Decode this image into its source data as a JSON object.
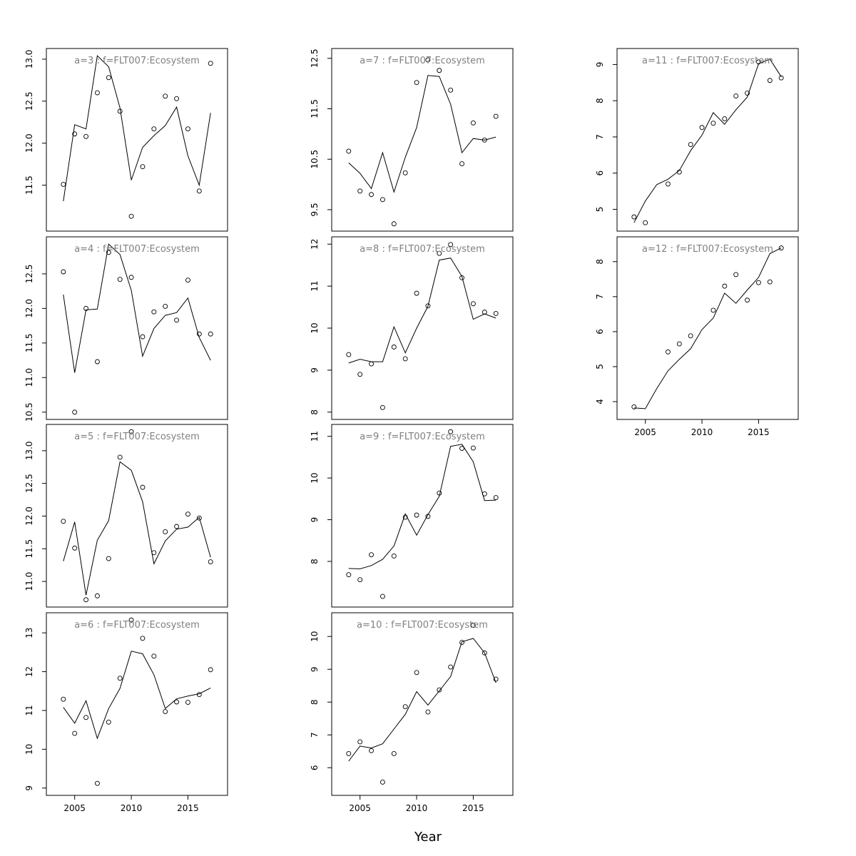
{
  "xlabel": "Year",
  "colors": {
    "label": "#7f7f7f",
    "line": "#000000",
    "points": "#000000"
  },
  "chart_data": [
    {
      "type": "scatter",
      "label": "a=3  :  f=FLT007:Ecosystem",
      "years": [
        2004,
        2005,
        2006,
        2007,
        2008,
        2009,
        2010,
        2011,
        2012,
        2013,
        2014,
        2015,
        2016,
        2017
      ],
      "observed": [
        11.51,
        12.11,
        12.08,
        12.6,
        12.78,
        12.38,
        11.13,
        11.72,
        12.17,
        12.56,
        12.53,
        12.17,
        11.43,
        12.95
      ],
      "fitted": [
        11.31,
        12.22,
        12.17,
        13.04,
        12.91,
        12.42,
        11.56,
        11.95,
        12.09,
        12.21,
        12.43,
        11.85,
        11.5,
        12.36
      ],
      "xlim": [
        2002.5,
        2018.5
      ],
      "ylim": [
        11.04,
        13.04
      ],
      "yticks": [
        11.5,
        12.0,
        12.5,
        13.0
      ],
      "xticks": [
        2005,
        2010,
        2015
      ],
      "show_xaxis": false
    },
    {
      "type": "scatter",
      "label": "a=4  :  f=FLT007:Ecosystem",
      "years": [
        2004,
        2005,
        2006,
        2007,
        2008,
        2009,
        2010,
        2011,
        2012,
        2013,
        2014,
        2015,
        2016,
        2017
      ],
      "observed": [
        12.53,
        10.5,
        12.0,
        11.23,
        12.81,
        12.42,
        12.45,
        11.59,
        11.95,
        12.03,
        11.83,
        12.41,
        11.63,
        11.63
      ],
      "fitted": [
        12.2,
        11.07,
        11.98,
        11.99,
        12.93,
        12.78,
        12.26,
        11.31,
        11.71,
        11.9,
        11.94,
        12.15,
        11.58,
        11.25
      ],
      "xlim": [
        2002.5,
        2018.5
      ],
      "ylim": [
        10.5,
        12.93
      ],
      "yticks": [
        10.5,
        11.0,
        11.5,
        12.0,
        12.5
      ],
      "xticks": [
        2005,
        2010,
        2015
      ],
      "show_xaxis": false
    },
    {
      "type": "scatter",
      "label": "a=5  :  f=FLT007:Ecosystem",
      "years": [
        2004,
        2005,
        2006,
        2007,
        2008,
        2009,
        2010,
        2011,
        2012,
        2013,
        2014,
        2015,
        2016,
        2017
      ],
      "observed": [
        11.92,
        11.51,
        10.72,
        10.78,
        11.35,
        12.9,
        13.29,
        12.44,
        11.44,
        11.76,
        11.84,
        12.03,
        11.97,
        11.3
      ],
      "fitted": [
        11.31,
        11.91,
        10.79,
        11.63,
        11.93,
        12.83,
        12.7,
        12.22,
        11.27,
        11.62,
        11.8,
        11.83,
        11.98,
        11.37
      ],
      "xlim": [
        2002.5,
        2018.5
      ],
      "ylim": [
        10.72,
        13.29
      ],
      "yticks": [
        11.0,
        11.5,
        12.0,
        12.5,
        13.0
      ],
      "xticks": [
        2005,
        2010,
        2015
      ],
      "show_xaxis": false
    },
    {
      "type": "scatter",
      "label": "a=6  :  f=FLT007:Ecosystem",
      "years": [
        2004,
        2005,
        2006,
        2007,
        2008,
        2009,
        2010,
        2011,
        2012,
        2013,
        2014,
        2015,
        2016,
        2017
      ],
      "observed": [
        11.29,
        10.41,
        10.82,
        9.12,
        10.7,
        11.83,
        13.33,
        12.86,
        12.4,
        10.97,
        11.22,
        11.21,
        11.41,
        12.05
      ],
      "fitted": [
        11.08,
        10.67,
        11.25,
        10.28,
        11.05,
        11.57,
        12.53,
        12.46,
        11.92,
        11.05,
        11.3,
        11.37,
        11.43,
        11.58
      ],
      "xlim": [
        2002.5,
        2018.5
      ],
      "ylim": [
        9.0,
        13.33
      ],
      "yticks": [
        9,
        10,
        11,
        12,
        13
      ],
      "xticks": [
        2005,
        2010,
        2015
      ],
      "show_xaxis": true
    },
    {
      "type": "scatter",
      "label": "a=7  :  f=FLT007:Ecosystem",
      "years": [
        2004,
        2005,
        2006,
        2007,
        2008,
        2009,
        2010,
        2011,
        2012,
        2013,
        2014,
        2015,
        2016,
        2017
      ],
      "observed": [
        10.66,
        9.87,
        9.8,
        9.7,
        9.22,
        10.23,
        12.02,
        12.47,
        12.26,
        11.87,
        10.41,
        11.22,
        10.88,
        11.35
      ],
      "fitted": [
        10.43,
        10.22,
        9.92,
        10.63,
        9.85,
        10.54,
        11.13,
        12.16,
        12.14,
        11.59,
        10.63,
        10.91,
        10.88,
        10.94
      ],
      "xlim": [
        2002.5,
        2018.5
      ],
      "ylim": [
        9.22,
        12.55
      ],
      "yticks": [
        9.5,
        10.5,
        11.5,
        12.5
      ],
      "xticks": [
        2005,
        2010,
        2015
      ],
      "show_xaxis": false
    },
    {
      "type": "scatter",
      "label": "a=8  :  f=FLT007:Ecosystem",
      "years": [
        2004,
        2005,
        2006,
        2007,
        2008,
        2009,
        2010,
        2011,
        2012,
        2013,
        2014,
        2015,
        2016,
        2017
      ],
      "observed": [
        9.37,
        8.9,
        9.15,
        8.11,
        9.55,
        9.27,
        10.83,
        10.53,
        11.78,
        11.99,
        11.2,
        10.58,
        10.38,
        10.35
      ],
      "fitted": [
        9.17,
        9.26,
        9.2,
        9.2,
        10.03,
        9.41,
        10.0,
        10.52,
        11.62,
        11.67,
        11.23,
        10.21,
        10.34,
        10.24
      ],
      "xlim": [
        2002.5,
        2018.5
      ],
      "ylim": [
        8.0,
        12.0
      ],
      "yticks": [
        8,
        9,
        10,
        11,
        12
      ],
      "xticks": [
        2005,
        2010,
        2015
      ],
      "show_xaxis": false
    },
    {
      "type": "scatter",
      "label": "a=9  :  f=FLT007:Ecosystem",
      "years": [
        2004,
        2005,
        2006,
        2007,
        2008,
        2009,
        2010,
        2011,
        2012,
        2013,
        2014,
        2015,
        2016,
        2017
      ],
      "observed": [
        7.68,
        7.56,
        8.16,
        7.16,
        8.13,
        9.06,
        9.11,
        9.08,
        9.64,
        11.11,
        10.71,
        10.72,
        9.62,
        9.53
      ],
      "fitted": [
        7.83,
        7.82,
        7.9,
        8.05,
        8.37,
        9.14,
        8.63,
        9.12,
        9.56,
        10.76,
        10.81,
        10.39,
        9.46,
        9.47
      ],
      "xlim": [
        2002.5,
        2018.5
      ],
      "ylim": [
        7.08,
        11.11
      ],
      "yticks": [
        8,
        9,
        10,
        11
      ],
      "xticks": [
        2005,
        2010,
        2015
      ],
      "show_xaxis": false
    },
    {
      "type": "scatter",
      "label": "a=10  :  f=FLT007:Ecosystem",
      "years": [
        2004,
        2005,
        2006,
        2007,
        2008,
        2009,
        2010,
        2011,
        2012,
        2013,
        2014,
        2015,
        2016,
        2017
      ],
      "observed": [
        6.43,
        6.79,
        6.52,
        5.56,
        6.43,
        7.86,
        8.9,
        7.7,
        8.37,
        9.07,
        9.82,
        10.34,
        9.5,
        8.7
      ],
      "fitted": [
        6.2,
        6.66,
        6.6,
        6.73,
        7.18,
        7.63,
        8.32,
        7.91,
        8.34,
        8.78,
        9.84,
        9.94,
        9.5,
        8.59
      ],
      "xlim": [
        2002.5,
        2018.5
      ],
      "ylim": [
        5.38,
        10.5
      ],
      "yticks": [
        6,
        7,
        8,
        9,
        10
      ],
      "xticks": [
        2005,
        2010,
        2015
      ],
      "show_xaxis": true
    },
    {
      "type": "scatter",
      "label": "a=11  :  f=FLT007:Ecosystem",
      "years": [
        2004,
        2005,
        2006,
        2007,
        2008,
        2009,
        2010,
        2011,
        2012,
        2013,
        2014,
        2015,
        2016,
        2017
      ],
      "observed": [
        4.79,
        4.63,
        null,
        5.7,
        6.03,
        6.79,
        7.26,
        7.38,
        7.5,
        8.13,
        8.21,
        9.07,
        8.56,
        8.63
      ],
      "fitted": [
        4.63,
        5.23,
        5.68,
        5.83,
        6.07,
        6.62,
        7.05,
        7.67,
        7.35,
        7.75,
        8.1,
        9.02,
        9.15,
        8.66
      ],
      "xlim": [
        2002.5,
        2018.5
      ],
      "ylim": [
        4.6,
        9.24
      ],
      "yticks": [
        5,
        6,
        7,
        8,
        9
      ],
      "xticks": [
        2005,
        2010,
        2015
      ],
      "show_xaxis": false
    },
    {
      "type": "scatter",
      "label": "a=12  :  f=FLT007:Ecosystem",
      "years": [
        2004,
        2005,
        2006,
        2007,
        2008,
        2009,
        2010,
        2011,
        2012,
        2013,
        2014,
        2015,
        2016,
        2017
      ],
      "observed": [
        3.85,
        null,
        null,
        5.42,
        5.65,
        5.88,
        null,
        6.61,
        7.3,
        7.63,
        6.9,
        7.4,
        7.42,
        8.39
      ],
      "fitted": [
        3.82,
        3.8,
        4.37,
        4.88,
        5.21,
        5.51,
        6.06,
        6.39,
        7.1,
        6.81,
        7.19,
        7.55,
        8.23,
        8.39
      ],
      "xlim": [
        2002.5,
        2018.5
      ],
      "ylim": [
        3.7,
        8.5
      ],
      "yticks": [
        4,
        5,
        6,
        7,
        8
      ],
      "xticks": [
        2005,
        2010,
        2015
      ],
      "show_xaxis": true
    }
  ]
}
